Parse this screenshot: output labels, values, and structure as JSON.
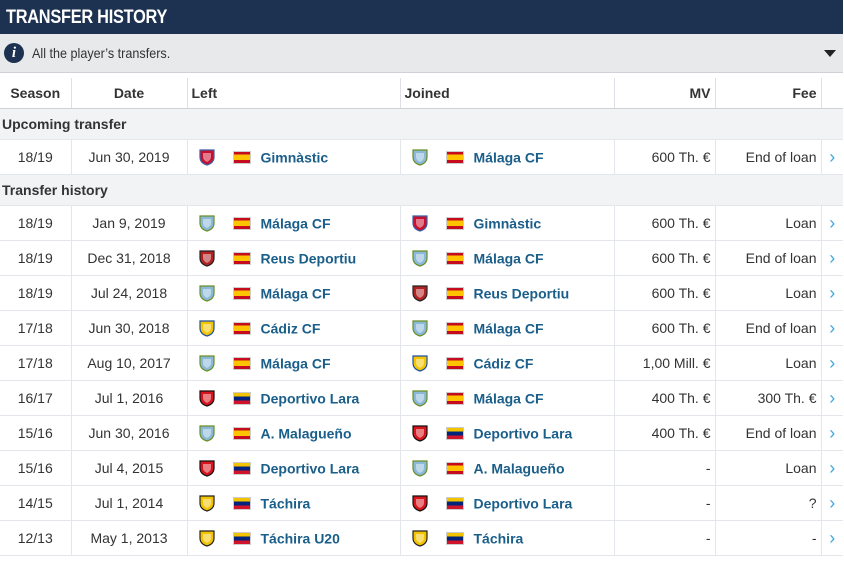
{
  "title": "TRANSFER HISTORY",
  "info": {
    "text": "All the player’s transfers.",
    "icon": "info-icon"
  },
  "columns": {
    "season": "Season",
    "date": "Date",
    "left": "Left",
    "joined": "Joined",
    "mv": "MV",
    "fee": "Fee"
  },
  "sections": {
    "upcoming": "Upcoming transfer",
    "history": "Transfer history"
  },
  "crest_colors": {
    "gimnastic": [
      "#c8102e",
      "#3a5fa8"
    ],
    "malaga": [
      "#8ab8d8",
      "#6b8e23"
    ],
    "reus": [
      "#b22222",
      "#222"
    ],
    "cadiz": [
      "#f2c500",
      "#1d4fa3"
    ],
    "lara": [
      "#d8141e",
      "#111"
    ],
    "tachira": [
      "#f4c300",
      "#222"
    ]
  },
  "upcoming": [
    {
      "season": "18/19",
      "date": "Jun 30, 2019",
      "left_crest": "gimnastic",
      "left_flag": "es",
      "left": "Gimnàstic",
      "joined_crest": "malaga",
      "joined_flag": "es",
      "joined": "Málaga CF",
      "mv": "600 Th. €",
      "fee": "End of loan"
    }
  ],
  "transfers": [
    {
      "season": "18/19",
      "date": "Jan 9, 2019",
      "left_crest": "malaga",
      "left_flag": "es",
      "left": "Málaga CF",
      "joined_crest": "gimnastic",
      "joined_flag": "es",
      "joined": "Gimnàstic",
      "mv": "600 Th. €",
      "fee": "Loan"
    },
    {
      "season": "18/19",
      "date": "Dec 31, 2018",
      "left_crest": "reus",
      "left_flag": "es",
      "left": "Reus Deportiu",
      "joined_crest": "malaga",
      "joined_flag": "es",
      "joined": "Málaga CF",
      "mv": "600 Th. €",
      "fee": "End of loan"
    },
    {
      "season": "18/19",
      "date": "Jul 24, 2018",
      "left_crest": "malaga",
      "left_flag": "es",
      "left": "Málaga CF",
      "joined_crest": "reus",
      "joined_flag": "es",
      "joined": "Reus Deportiu",
      "mv": "600 Th. €",
      "fee": "Loan"
    },
    {
      "season": "17/18",
      "date": "Jun 30, 2018",
      "left_crest": "cadiz",
      "left_flag": "es",
      "left": "Cádiz CF",
      "joined_crest": "malaga",
      "joined_flag": "es",
      "joined": "Málaga CF",
      "mv": "600 Th. €",
      "fee": "End of loan"
    },
    {
      "season": "17/18",
      "date": "Aug 10, 2017",
      "left_crest": "malaga",
      "left_flag": "es",
      "left": "Málaga CF",
      "joined_crest": "cadiz",
      "joined_flag": "es",
      "joined": "Cádiz CF",
      "mv": "1,00 Mill. €",
      "fee": "Loan"
    },
    {
      "season": "16/17",
      "date": "Jul 1, 2016",
      "left_crest": "lara",
      "left_flag": "ve",
      "left": "Deportivo Lara",
      "joined_crest": "malaga",
      "joined_flag": "es",
      "joined": "Málaga CF",
      "mv": "400 Th. €",
      "fee": "300 Th. €"
    },
    {
      "season": "15/16",
      "date": "Jun 30, 2016",
      "left_crest": "malaga",
      "left_flag": "es",
      "left": "A. Malagueño",
      "joined_crest": "lara",
      "joined_flag": "ve",
      "joined": "Deportivo Lara",
      "mv": "400 Th. €",
      "fee": "End of loan"
    },
    {
      "season": "15/16",
      "date": "Jul 4, 2015",
      "left_crest": "lara",
      "left_flag": "ve",
      "left": "Deportivo Lara",
      "joined_crest": "malaga",
      "joined_flag": "es",
      "joined": "A. Malagueño",
      "mv": "-",
      "fee": "Loan"
    },
    {
      "season": "14/15",
      "date": "Jul 1, 2014",
      "left_crest": "tachira",
      "left_flag": "ve",
      "left": "Táchira",
      "joined_crest": "lara",
      "joined_flag": "ve",
      "joined": "Deportivo Lara",
      "mv": "-",
      "fee": "?"
    },
    {
      "season": "12/13",
      "date": "May 1, 2013",
      "left_crest": "tachira",
      "left_flag": "ve",
      "left": "Táchira U20",
      "joined_crest": "tachira",
      "joined_flag": "ve",
      "joined": "Táchira",
      "mv": "-",
      "fee": "-"
    }
  ],
  "row_arrow": "›"
}
